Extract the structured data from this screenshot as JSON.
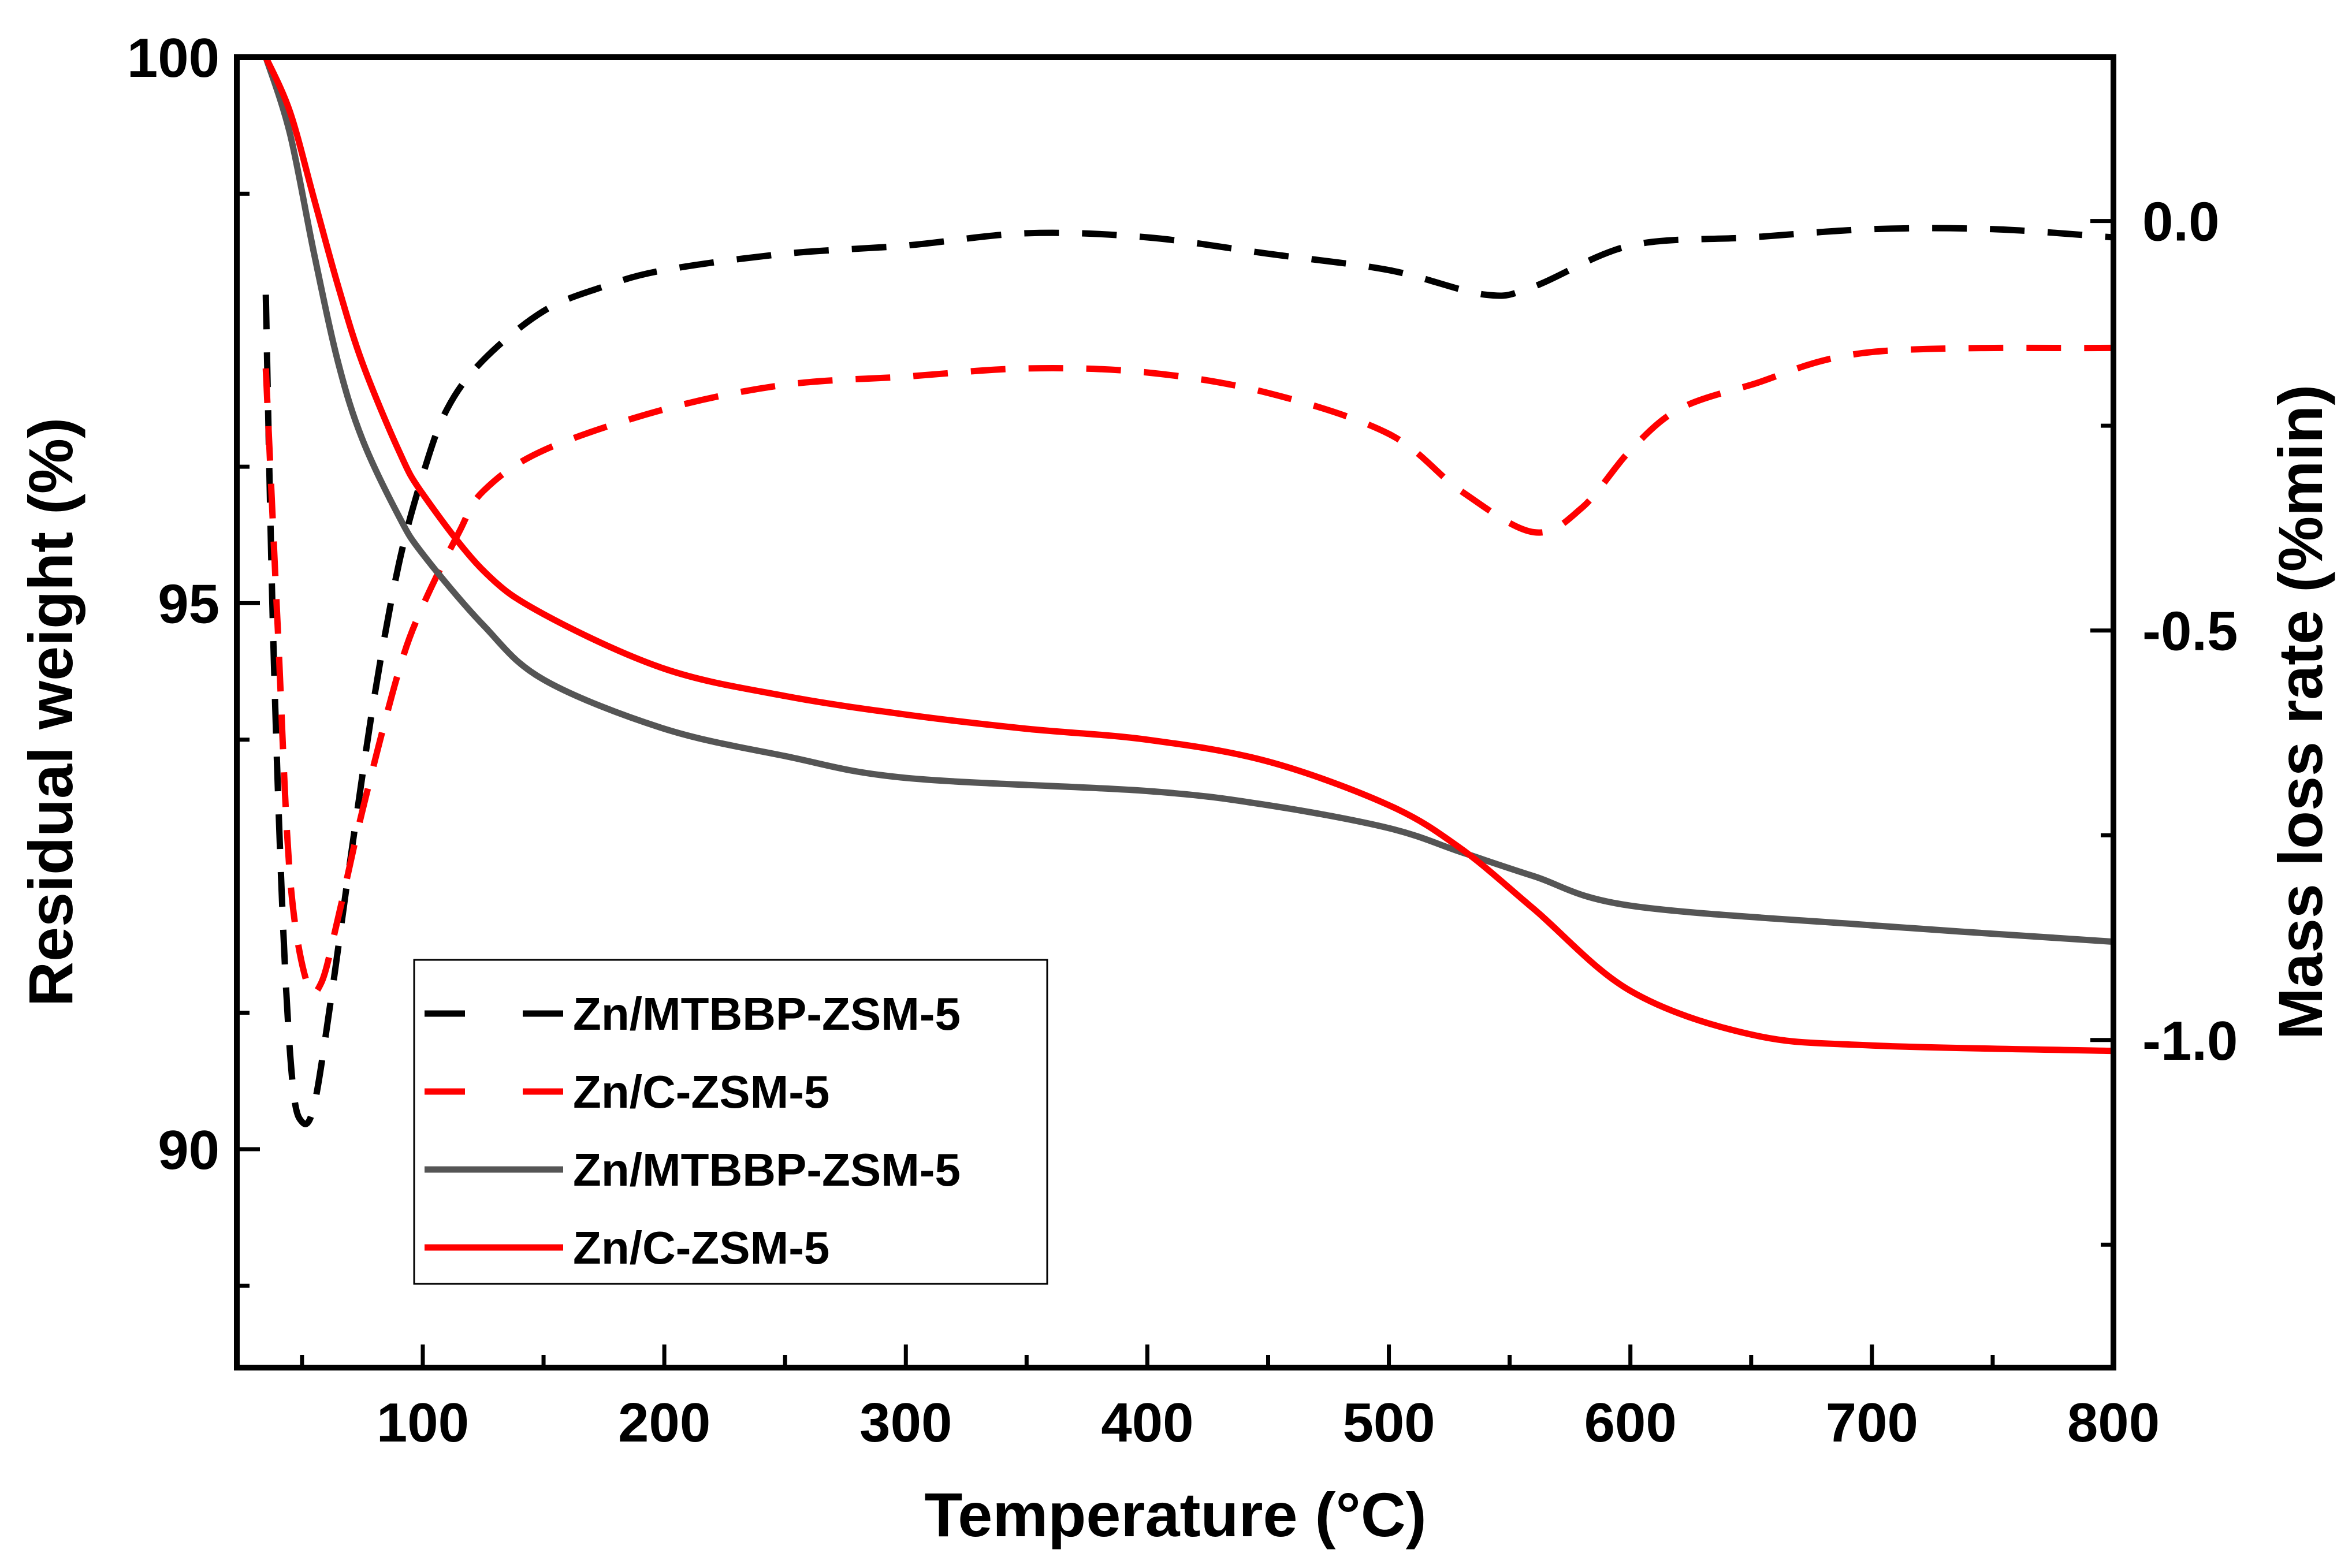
{
  "chart_data": {
    "type": "line",
    "title": "",
    "xlabel": "Temperature (°C)",
    "ylabel_left": "Residual weight (%)",
    "ylabel_right": "Mass loss rate (%min)",
    "xlim": [
      23,
      800
    ],
    "ylim_left": [
      88,
      100
    ],
    "ylim_right": [
      -1.4,
      0.2
    ],
    "xticks": [
      100,
      200,
      300,
      400,
      500,
      600,
      700,
      800
    ],
    "xtick_labels": [
      "100",
      "200",
      "300",
      "400",
      "500",
      "600",
      "700",
      "800"
    ],
    "yticks_left": [
      90,
      95,
      100
    ],
    "ytick_labels_left": [
      "90",
      "95",
      "100"
    ],
    "yticks_right": [
      -1.0,
      -0.5,
      0.0
    ],
    "ytick_labels_right": [
      "-1.0",
      "-0.5",
      "0.0"
    ],
    "grid": false,
    "legend_position": "bottom-left",
    "series": [
      {
        "name": "Zn/MTBBP-ZSM-5",
        "axis": "right",
        "style": "dashed",
        "color": "#000000",
        "x": [
          35,
          38,
          42,
          46,
          50,
          55,
          62,
          70,
          80,
          90,
          100,
          110,
          125,
          150,
          175,
          200,
          250,
          300,
          350,
          400,
          450,
          500,
          540,
          560,
          600,
          650,
          700,
          750,
          800
        ],
        "y": [
          -0.09,
          -0.5,
          -0.85,
          -1.05,
          -1.1,
          -1.08,
          -0.95,
          -0.78,
          -0.58,
          -0.42,
          -0.31,
          -0.23,
          -0.17,
          -0.11,
          -0.08,
          -0.06,
          -0.04,
          -0.03,
          -0.015,
          -0.02,
          -0.04,
          -0.06,
          -0.09,
          -0.08,
          -0.03,
          -0.02,
          -0.01,
          -0.01,
          -0.02
        ]
      },
      {
        "name": "Zn/C-ZSM-5",
        "axis": "right",
        "style": "dashed",
        "color": "#ff0000",
        "x": [
          35,
          40,
          45,
          52,
          58,
          65,
          75,
          90,
          100,
          115,
          125,
          150,
          200,
          250,
          300,
          350,
          400,
          450,
          500,
          530,
          560,
          580,
          600,
          620,
          650,
          700,
          800
        ],
        "y": [
          -0.18,
          -0.5,
          -0.8,
          -0.93,
          -0.93,
          -0.85,
          -0.72,
          -0.55,
          -0.47,
          -0.38,
          -0.33,
          -0.28,
          -0.23,
          -0.2,
          -0.19,
          -0.18,
          -0.185,
          -0.21,
          -0.26,
          -0.33,
          -0.38,
          -0.35,
          -0.28,
          -0.23,
          -0.2,
          -0.16,
          -0.155
        ]
      },
      {
        "name": "Zn/MTBBP-ZSM-5",
        "axis": "left",
        "style": "solid",
        "color": "#555555",
        "x": [
          35,
          45,
          55,
          65,
          75,
          90,
          100,
          125,
          150,
          200,
          250,
          300,
          400,
          450,
          500,
          530,
          560,
          600,
          700,
          800
        ],
        "y": [
          100,
          99.3,
          98.2,
          97.2,
          96.5,
          95.8,
          95.45,
          94.8,
          94.3,
          93.85,
          93.6,
          93.4,
          93.28,
          93.15,
          92.94,
          92.72,
          92.5,
          92.23,
          92.05,
          91.9
        ]
      },
      {
        "name": "Zn/C-ZSM-5",
        "axis": "left",
        "style": "solid",
        "color": "#ff0000",
        "x": [
          35,
          45,
          55,
          65,
          75,
          90,
          100,
          125,
          150,
          200,
          250,
          300,
          350,
          400,
          450,
          500,
          530,
          560,
          600,
          650,
          700,
          800
        ],
        "y": [
          100,
          99.5,
          98.7,
          97.9,
          97.2,
          96.4,
          96.0,
          95.3,
          94.9,
          94.4,
          94.15,
          93.98,
          93.85,
          93.75,
          93.55,
          93.15,
          92.75,
          92.2,
          91.45,
          91.05,
          90.95,
          90.9
        ]
      }
    ]
  }
}
